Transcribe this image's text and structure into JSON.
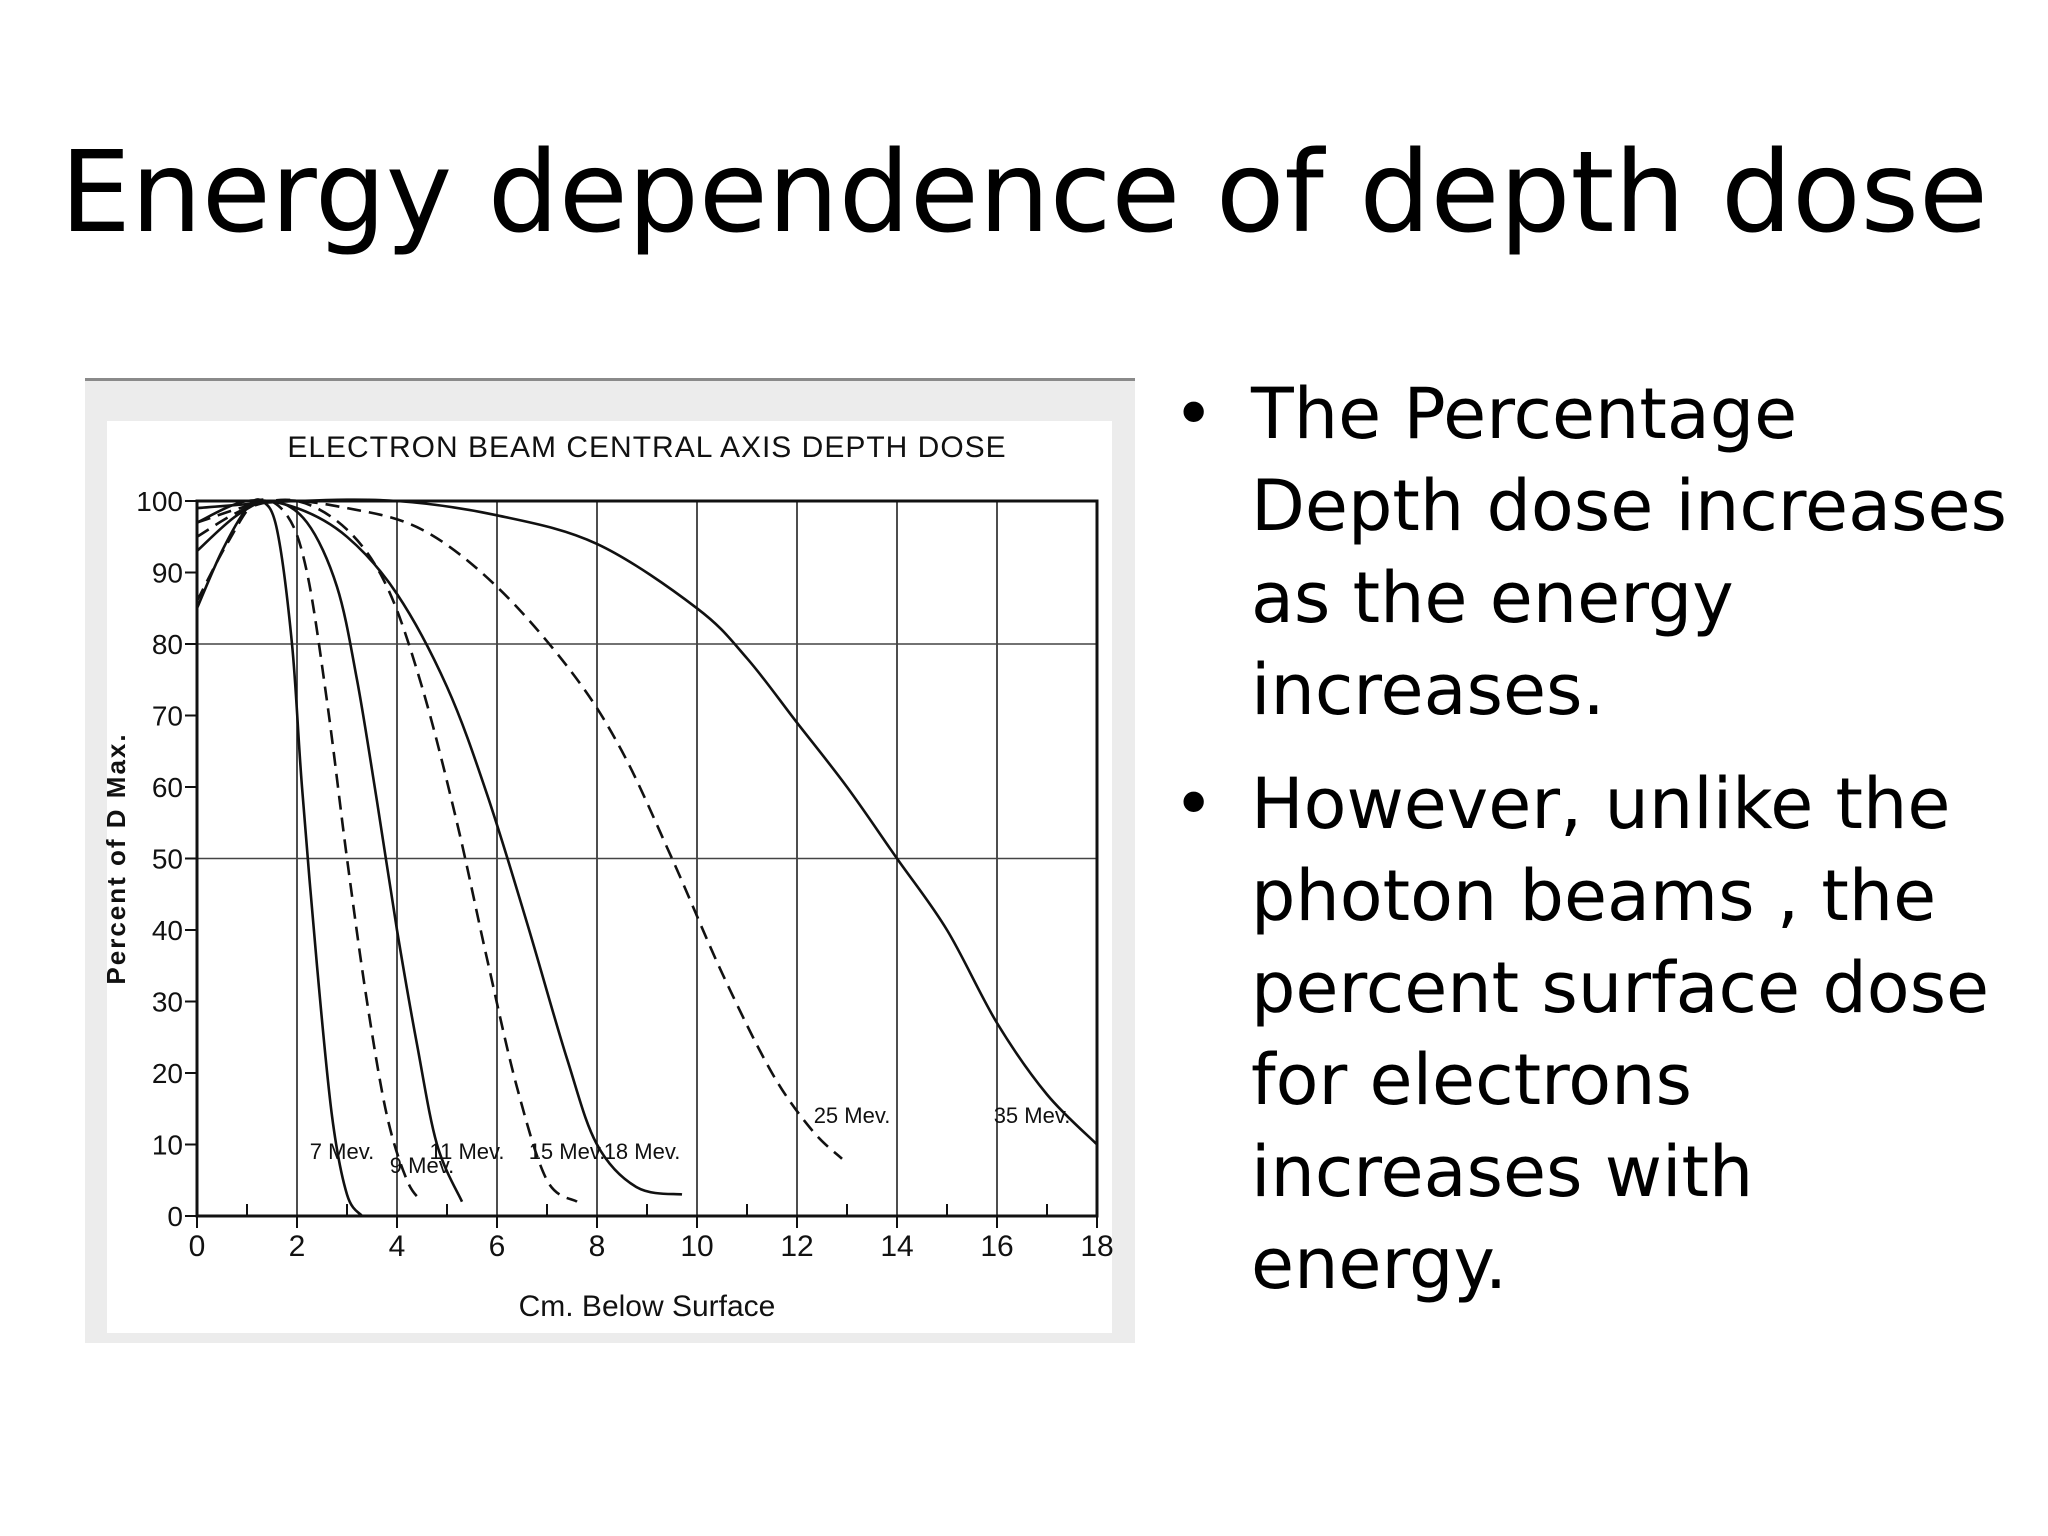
{
  "slide": {
    "title": "Energy dependence of depth dose",
    "bullets": [
      "The Percentage Depth dose increases as the energy increases.",
      "However, unlike the photon beams , the percent surface dose for electrons increases with energy."
    ]
  },
  "chart_data": {
    "type": "line",
    "title": "ELECTRON BEAM CENTRAL AXIS DEPTH DOSE",
    "xlabel": "Cm. Below Surface",
    "ylabel": "Percent of D Max.",
    "xlim": [
      0,
      18
    ],
    "ylim": [
      0,
      100
    ],
    "x_ticks": [
      "0",
      "2",
      "4",
      "6",
      "8",
      "10",
      "12",
      "14",
      "16",
      "18"
    ],
    "y_ticks": [
      "0",
      "10",
      "20",
      "30",
      "40",
      "50",
      "60",
      "70",
      "80",
      "90",
      "100"
    ],
    "grid": "vertical lines every 2 cm; horizontal lines at 80 and 50",
    "series": [
      {
        "name": "7 Mev.",
        "dashed": false,
        "label_at": [
          2.9,
          8
        ],
        "x": [
          0,
          0.5,
          1.0,
          1.3,
          1.6,
          1.9,
          2.1,
          2.4,
          2.7,
          3.0,
          3.3
        ],
        "y": [
          85,
          93,
          99,
          100,
          96,
          80,
          60,
          35,
          14,
          3,
          0
        ]
      },
      {
        "name": "9 Mev.",
        "dashed": true,
        "label_at": [
          4.5,
          6
        ],
        "x": [
          0,
          0.6,
          1.2,
          1.8,
          2.2,
          2.6,
          3.0,
          3.4,
          3.8,
          4.2,
          4.5
        ],
        "y": [
          86,
          94,
          100,
          98,
          90,
          72,
          50,
          30,
          14,
          5,
          2
        ]
      },
      {
        "name": "11 Mev.",
        "dashed": false,
        "label_at": [
          5.4,
          8
        ],
        "x": [
          0,
          0.8,
          1.5,
          2.2,
          2.8,
          3.2,
          3.6,
          4.0,
          4.4,
          4.8,
          5.3
        ],
        "y": [
          93,
          98,
          100,
          97,
          88,
          75,
          58,
          40,
          24,
          10,
          2
        ]
      },
      {
        "name": "15 Mev.",
        "dashed": true,
        "label_at": [
          7.4,
          8
        ],
        "x": [
          0,
          1.0,
          2.0,
          3.0,
          3.8,
          4.5,
          5.2,
          5.8,
          6.4,
          7.0,
          7.6
        ],
        "y": [
          95,
          99,
          100,
          96,
          88,
          74,
          55,
          36,
          18,
          5,
          2
        ]
      },
      {
        "name": "18 Mev.",
        "dashed": false,
        "label_at": [
          8.9,
          8
        ],
        "x": [
          0,
          1.0,
          2.0,
          3.0,
          4.0,
          5.0,
          5.8,
          6.6,
          7.4,
          8.0,
          8.8,
          9.7
        ],
        "y": [
          97,
          100,
          99,
          95,
          87,
          74,
          59,
          41,
          22,
          10,
          4,
          3
        ]
      },
      {
        "name": "25 Mev.",
        "dashed": true,
        "label_at": [
          13.1,
          13
        ],
        "x": [
          0,
          1.5,
          3.0,
          4.5,
          6.0,
          7.5,
          8.5,
          9.5,
          10.5,
          11.5,
          12.3,
          12.9
        ],
        "y": [
          97,
          100,
          99,
          96,
          88,
          76,
          65,
          50,
          34,
          20,
          12,
          8
        ]
      },
      {
        "name": "35 Mev.",
        "dashed": false,
        "label_at": [
          16.7,
          13
        ],
        "x": [
          0,
          2,
          4,
          6,
          8,
          10,
          11,
          12,
          13,
          14,
          15,
          16,
          17,
          18
        ],
        "y": [
          99,
          100,
          100,
          98,
          94,
          85,
          78,
          69,
          60,
          50,
          40,
          27,
          17,
          10
        ]
      }
    ]
  }
}
